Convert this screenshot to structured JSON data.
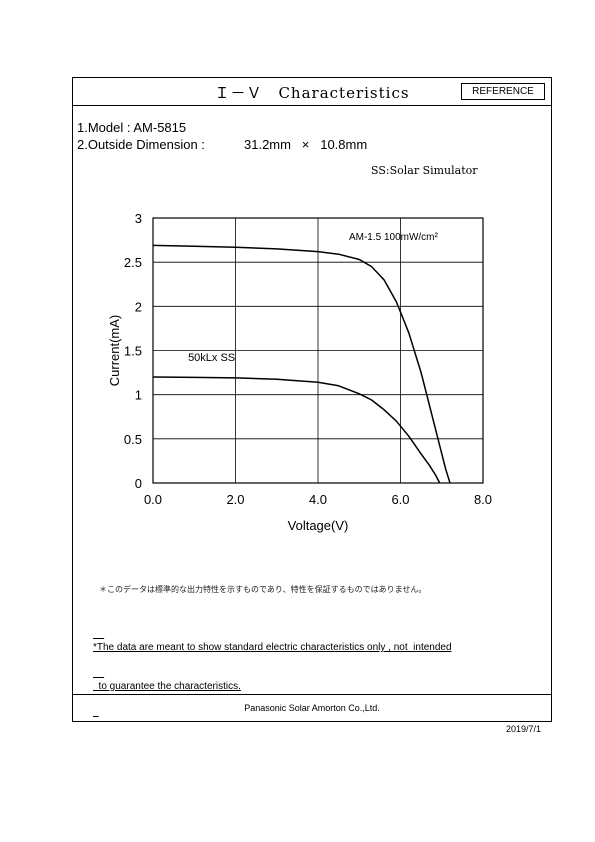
{
  "header": {
    "title": "Ｉ－Ｖ　Characteristics",
    "reference_badge": "REFERENCE"
  },
  "specs": {
    "model_line": "1.Model : AM-5815",
    "dimension_label": "2.Outside Dimension :",
    "dimension_value": "31.2mm   ×   10.8mm",
    "ss_note": "SS:Solar Simulator"
  },
  "notes": {
    "japanese": "＊このデータは標準的な出力特性を示すものであり、特性を保証するものではありません。",
    "english_line1": "*The data are meant to show standard electric characteristics only , not  intended",
    "english_line2": "  to guarantee the characteristics."
  },
  "footer": {
    "company": "Panasonic Solar Amorton Co.,Ltd.",
    "date": "2019/7/1"
  },
  "chart_data": {
    "type": "line",
    "xlabel": "Voltage(V)",
    "ylabel": "Current(mA)",
    "xlim": [
      0,
      8
    ],
    "ylim": [
      0,
      3
    ],
    "x_ticks": [
      "0.0",
      "2.0",
      "4.0",
      "6.0",
      "8.0"
    ],
    "y_ticks": [
      "0",
      "0.5",
      "1",
      "1.5",
      "2",
      "2.5",
      "3"
    ],
    "grid": true,
    "series": [
      {
        "name": "AM-1.5 100mW/cm²",
        "x": [
          0.0,
          1.0,
          2.0,
          3.0,
          4.0,
          4.5,
          5.0,
          5.3,
          5.6,
          5.9,
          6.2,
          6.5,
          6.8,
          7.0,
          7.1,
          7.2
        ],
        "y": [
          2.69,
          2.68,
          2.67,
          2.65,
          2.62,
          2.59,
          2.53,
          2.45,
          2.3,
          2.05,
          1.7,
          1.25,
          0.7,
          0.33,
          0.15,
          0.0
        ]
      },
      {
        "name": "50kLx  SS",
        "x": [
          0.0,
          1.0,
          2.0,
          3.0,
          4.0,
          4.5,
          5.0,
          5.3,
          5.6,
          5.9,
          6.2,
          6.5,
          6.7,
          6.85,
          6.95
        ],
        "y": [
          1.2,
          1.195,
          1.19,
          1.175,
          1.14,
          1.1,
          1.01,
          0.94,
          0.83,
          0.7,
          0.53,
          0.33,
          0.2,
          0.09,
          0.0
        ]
      }
    ]
  }
}
